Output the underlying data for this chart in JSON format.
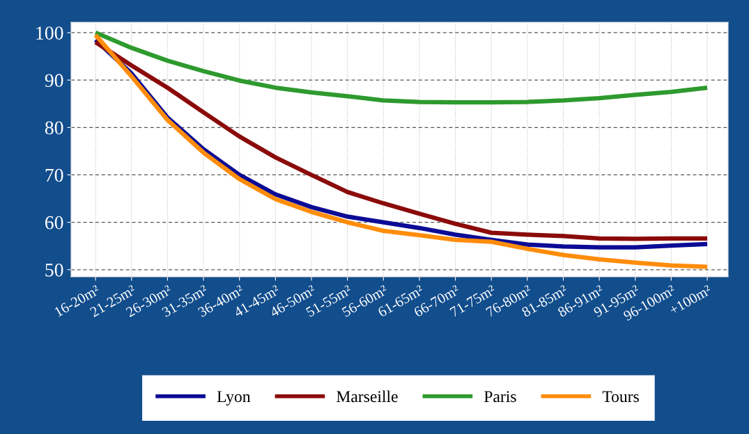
{
  "chart_data": {
    "type": "line",
    "categories": [
      "16-20m²",
      "21-25m²",
      "26-30m²",
      "31-35m²",
      "36-40m²",
      "41-45m²",
      "46-50m²",
      "51-55m²",
      "56-60m²",
      "61-65m²",
      "66-70m²",
      "71-75m²",
      "76-80m²",
      "81-85m²",
      "86-91m²",
      "91-95m²",
      "96-100m²",
      "+100m²"
    ],
    "series": [
      {
        "name": "Lyon",
        "color": "#0b0b96",
        "values": [
          98.5,
          91.4,
          82.1,
          75.4,
          70.0,
          65.9,
          63.2,
          61.2,
          60.0,
          58.8,
          57.4,
          56.3,
          55.3,
          54.9,
          54.7,
          54.7,
          55.1,
          55.4
        ]
      },
      {
        "name": "Marseille",
        "color": "#8b0b0b",
        "values": [
          98.0,
          93.1,
          88.4,
          83.2,
          78.1,
          73.7,
          70.0,
          66.4,
          64.0,
          61.8,
          59.7,
          57.8,
          57.4,
          57.1,
          56.6,
          56.5,
          56.6,
          56.6
        ]
      },
      {
        "name": "Paris",
        "color": "#2e9a2e",
        "values": [
          100.0,
          96.8,
          94.1,
          91.9,
          89.9,
          88.4,
          87.4,
          86.6,
          85.7,
          85.4,
          85.3,
          85.3,
          85.4,
          85.7,
          86.2,
          86.9,
          87.5,
          88.4
        ]
      },
      {
        "name": "Tours",
        "color": "#ff8c0a",
        "values": [
          99.5,
          90.8,
          81.6,
          74.7,
          69.1,
          64.9,
          62.2,
          60.0,
          58.2,
          57.3,
          56.3,
          55.9,
          54.4,
          53.1,
          52.2,
          51.5,
          50.9,
          50.6
        ]
      }
    ],
    "ylim": [
      48.5,
      102.2
    ],
    "yticks": [
      50,
      60,
      70,
      80,
      90,
      100
    ],
    "grid": true,
    "legend": "bottom",
    "marker": "none",
    "line_style": "solid"
  }
}
